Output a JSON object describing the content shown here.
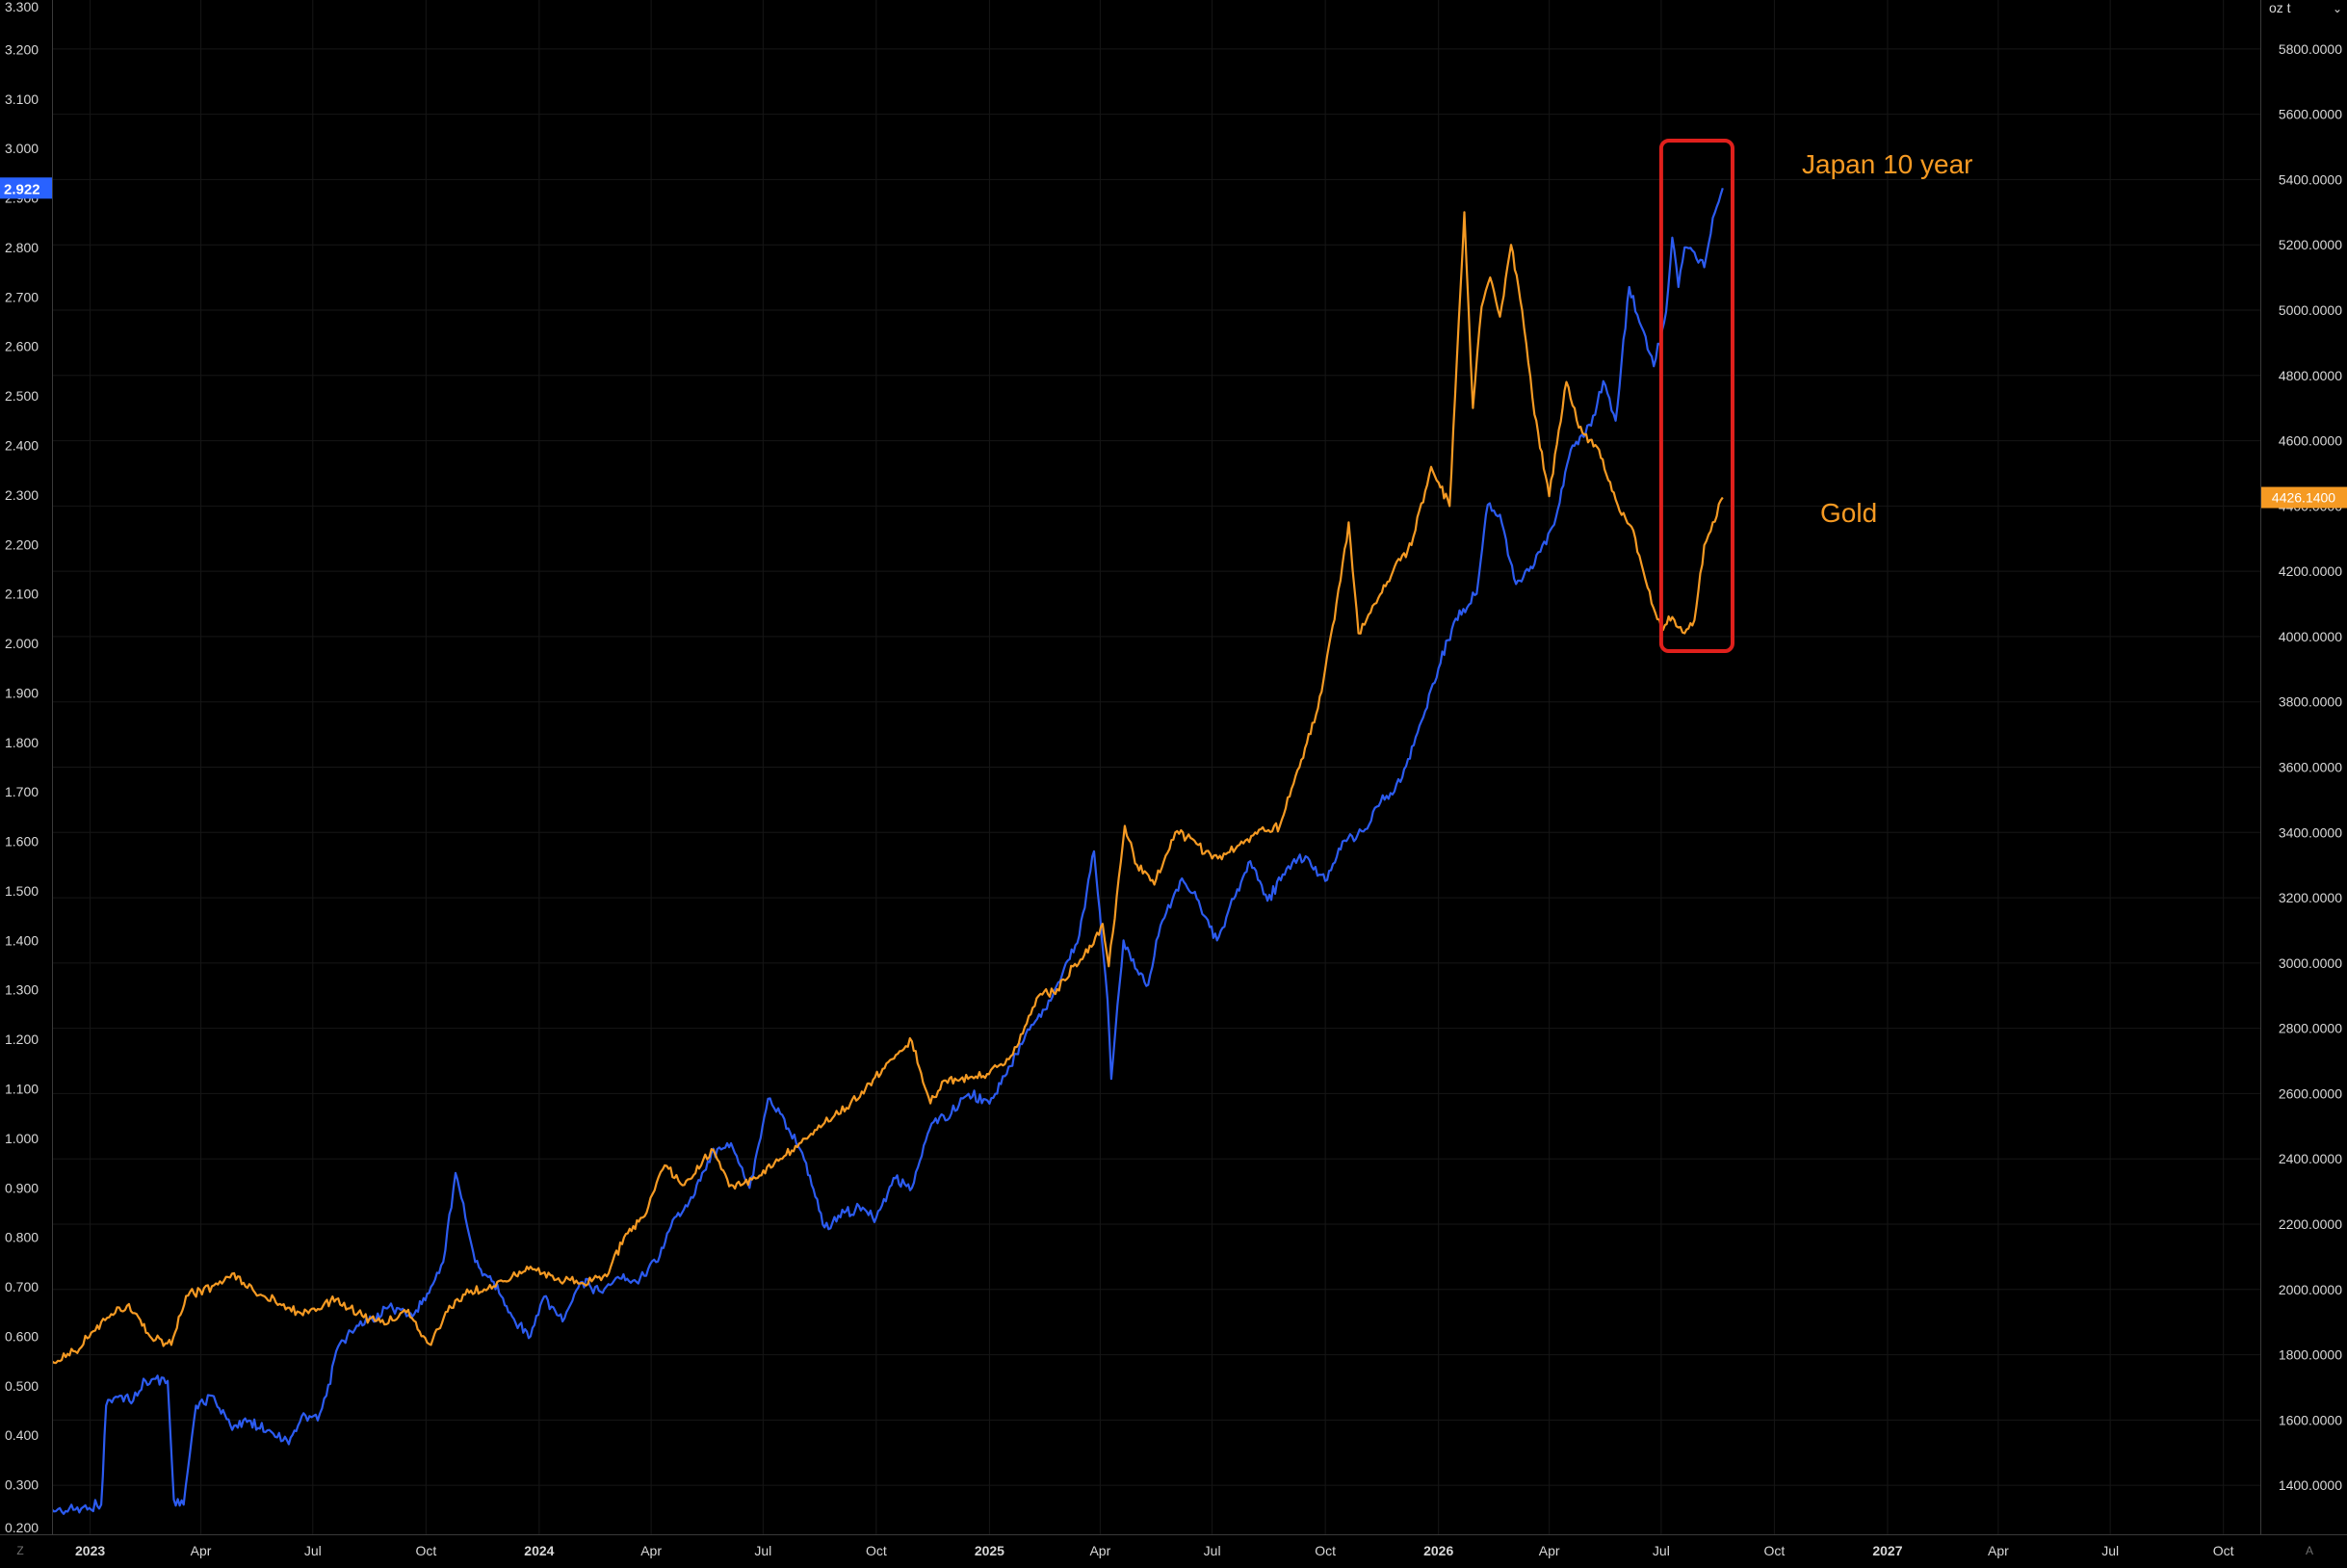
{
  "chart_data": {
    "type": "line",
    "x_range": [
      "2022-12-01",
      "2027-10-31"
    ],
    "x_tick_labels": [
      "2023",
      "Apr",
      "Jul",
      "Oct",
      "2024",
      "Apr",
      "Jul",
      "Oct",
      "2025",
      "Apr",
      "Jul",
      "Oct",
      "2026",
      "Apr",
      "Jul",
      "Oct",
      "2027",
      "Apr",
      "Jul",
      "Oct"
    ],
    "x_tick_dates": [
      "2023-01-01",
      "2023-04-01",
      "2023-07-01",
      "2023-10-01",
      "2024-01-01",
      "2024-04-01",
      "2024-07-01",
      "2024-10-01",
      "2025-01-01",
      "2025-04-01",
      "2025-07-01",
      "2025-10-01",
      "2026-01-01",
      "2026-04-01",
      "2026-07-01",
      "2026-10-01",
      "2027-01-01",
      "2027-04-01",
      "2027-07-01",
      "2027-10-01"
    ],
    "left_axis": {
      "ylim": [
        0.2,
        3.3
      ],
      "tick_labels": [
        "0.200",
        "0.300",
        "0.400",
        "0.500",
        "0.600",
        "0.700",
        "0.800",
        "0.900",
        "1.000",
        "1.100",
        "1.200",
        "1.300",
        "1.400",
        "1.500",
        "1.600",
        "1.700",
        "1.800",
        "1.900",
        "2.000",
        "2.100",
        "2.200",
        "2.300",
        "2.400",
        "2.500",
        "2.600",
        "2.700",
        "2.800",
        "2.900",
        "3.000",
        "3.100",
        "3.200",
        "3.300"
      ],
      "last_value_label": "2.922"
    },
    "right_axis": {
      "ylim": [
        1250,
        5950
      ],
      "unit_label": "oz t",
      "tick_labels": [
        "1400.0000",
        "1600.0000",
        "1800.0000",
        "2000.0000",
        "2200.0000",
        "2400.0000",
        "2600.0000",
        "2800.0000",
        "3000.0000",
        "3200.0000",
        "3400.0000",
        "3600.0000",
        "3800.0000",
        "4000.0000",
        "4200.0000",
        "4400.0000",
        "4600.0000",
        "4800.0000",
        "5000.0000",
        "5200.0000",
        "5400.0000",
        "5600.0000",
        "5800.0000"
      ],
      "last_value_label": "4426.1400"
    },
    "series": [
      {
        "name": "Japan 10 year",
        "axis": "left",
        "color": "#2c5bf0",
        "x": [
          "2022-12-01",
          "2022-12-20",
          "2023-01-10",
          "2023-01-14",
          "2023-01-25",
          "2023-02-05",
          "2023-02-15",
          "2023-03-05",
          "2023-03-10",
          "2023-03-18",
          "2023-03-28",
          "2023-04-10",
          "2023-04-25",
          "2023-05-10",
          "2023-05-25",
          "2023-06-10",
          "2023-06-25",
          "2023-07-05",
          "2023-07-12",
          "2023-07-20",
          "2023-08-01",
          "2023-08-15",
          "2023-09-01",
          "2023-09-20",
          "2023-10-05",
          "2023-10-15",
          "2023-10-25",
          "2023-11-10",
          "2023-11-25",
          "2023-12-10",
          "2023-12-25",
          "2024-01-05",
          "2024-01-20",
          "2024-02-05",
          "2024-02-20",
          "2024-03-05",
          "2024-03-20",
          "2024-04-05",
          "2024-04-20",
          "2024-05-05",
          "2024-05-20",
          "2024-06-05",
          "2024-06-20",
          "2024-07-05",
          "2024-07-15",
          "2024-07-28",
          "2024-08-05",
          "2024-08-20",
          "2024-09-05",
          "2024-09-20",
          "2024-10-01",
          "2024-10-15",
          "2024-10-30",
          "2024-11-15",
          "2024-12-01",
          "2024-12-15",
          "2025-01-01",
          "2025-01-15",
          "2025-02-01",
          "2025-02-15",
          "2025-03-01",
          "2025-03-15",
          "2025-03-27",
          "2025-04-07",
          "2025-04-10",
          "2025-04-20",
          "2025-05-01",
          "2025-05-10",
          "2025-05-20",
          "2025-06-05",
          "2025-06-20",
          "2025-07-05",
          "2025-07-20",
          "2025-08-01",
          "2025-08-15",
          "2025-09-01",
          "2025-09-15",
          "2025-10-01",
          "2025-10-15",
          "2025-11-01",
          "2025-11-15",
          "2025-12-01",
          "2025-12-15",
          "2026-01-01",
          "2026-01-15",
          "2026-02-01",
          "2026-02-10",
          "2026-02-20",
          "2026-03-05",
          "2026-03-20",
          "2026-04-05",
          "2026-04-20",
          "2026-05-05",
          "2026-05-15",
          "2026-05-25",
          "2026-06-05",
          "2026-06-15",
          "2026-06-25",
          "2026-07-05",
          "2026-07-10",
          "2026-07-15",
          "2026-07-20",
          "2026-07-28",
          "2026-08-05",
          "2026-08-12",
          "2026-08-20"
        ],
        "values": [
          0.25,
          0.25,
          0.26,
          0.46,
          0.48,
          0.47,
          0.51,
          0.51,
          0.27,
          0.26,
          0.46,
          0.48,
          0.42,
          0.43,
          0.41,
          0.39,
          0.44,
          0.43,
          0.48,
          0.57,
          0.61,
          0.63,
          0.66,
          0.64,
          0.7,
          0.75,
          0.93,
          0.75,
          0.71,
          0.64,
          0.6,
          0.68,
          0.63,
          0.71,
          0.69,
          0.72,
          0.71,
          0.75,
          0.84,
          0.88,
          0.97,
          0.99,
          0.9,
          1.08,
          1.05,
          0.99,
          0.95,
          0.82,
          0.85,
          0.86,
          0.84,
          0.92,
          0.9,
          1.03,
          1.05,
          1.09,
          1.07,
          1.13,
          1.22,
          1.26,
          1.33,
          1.41,
          1.58,
          1.28,
          1.12,
          1.4,
          1.34,
          1.31,
          1.43,
          1.52,
          1.48,
          1.4,
          1.49,
          1.56,
          1.48,
          1.55,
          1.57,
          1.52,
          1.6,
          1.62,
          1.68,
          1.72,
          1.82,
          1.95,
          2.05,
          2.1,
          2.28,
          2.26,
          2.12,
          2.16,
          2.24,
          2.4,
          2.44,
          2.53,
          2.45,
          2.72,
          2.64,
          2.56,
          2.67,
          2.82,
          2.72,
          2.8,
          2.79,
          2.76,
          2.86,
          2.92
        ]
      },
      {
        "name": "Gold",
        "axis": "right",
        "color": "#f59a23",
        "x": [
          "2022-12-01",
          "2022-12-20",
          "2023-01-10",
          "2023-01-31",
          "2023-02-20",
          "2023-03-08",
          "2023-03-20",
          "2023-04-10",
          "2023-04-28",
          "2023-05-15",
          "2023-06-01",
          "2023-06-20",
          "2023-07-05",
          "2023-07-20",
          "2023-08-10",
          "2023-08-25",
          "2023-09-15",
          "2023-10-05",
          "2023-10-20",
          "2023-11-05",
          "2023-11-25",
          "2023-12-10",
          "2023-12-25",
          "2024-01-15",
          "2024-02-05",
          "2024-02-25",
          "2024-03-10",
          "2024-03-25",
          "2024-04-12",
          "2024-04-28",
          "2024-05-10",
          "2024-05-20",
          "2024-06-05",
          "2024-06-25",
          "2024-07-15",
          "2024-08-01",
          "2024-08-20",
          "2024-09-10",
          "2024-09-30",
          "2024-10-20",
          "2024-10-30",
          "2024-11-14",
          "2024-11-25",
          "2024-12-10",
          "2024-12-30",
          "2025-01-20",
          "2025-02-10",
          "2025-02-25",
          "2025-03-10",
          "2025-03-25",
          "2025-04-03",
          "2025-04-08",
          "2025-04-21",
          "2025-05-01",
          "2025-05-15",
          "2025-06-01",
          "2025-06-15",
          "2025-07-01",
          "2025-07-20",
          "2025-08-05",
          "2025-08-25",
          "2025-09-10",
          "2025-09-25",
          "2025-10-10",
          "2025-10-20",
          "2025-10-28",
          "2025-11-10",
          "2025-11-25",
          "2025-12-10",
          "2025-12-26",
          "2026-01-10",
          "2026-01-22",
          "2026-01-29",
          "2026-02-05",
          "2026-02-12",
          "2026-02-20",
          "2026-03-01",
          "2026-03-10",
          "2026-03-20",
          "2026-04-01",
          "2026-04-15",
          "2026-04-25",
          "2026-05-10",
          "2026-05-25",
          "2026-06-10",
          "2026-06-20",
          "2026-07-01",
          "2026-07-10",
          "2026-07-20",
          "2026-07-28",
          "2026-08-05",
          "2026-08-12",
          "2026-08-20"
        ],
        "values": [
          1780,
          1810,
          1900,
          1950,
          1850,
          1830,
          1980,
          2010,
          2050,
          1990,
          1960,
          1930,
          1940,
          1970,
          1920,
          1900,
          1930,
          1830,
          1950,
          1990,
          2010,
          2040,
          2070,
          2030,
          2020,
          2040,
          2160,
          2220,
          2380,
          2320,
          2370,
          2430,
          2320,
          2340,
          2400,
          2450,
          2510,
          2570,
          2650,
          2730,
          2760,
          2570,
          2640,
          2650,
          2660,
          2720,
          2900,
          2920,
          2990,
          3050,
          3120,
          2990,
          3420,
          3300,
          3240,
          3400,
          3380,
          3320,
          3350,
          3400,
          3420,
          3600,
          3780,
          4100,
          4350,
          4010,
          4100,
          4200,
          4280,
          4520,
          4400,
          5300,
          4700,
          5010,
          5100,
          4980,
          5200,
          5000,
          4680,
          4430,
          4780,
          4640,
          4580,
          4420,
          4300,
          4150,
          4030,
          4060,
          4010,
          4050,
          4280,
          4350,
          4426
        ]
      }
    ],
    "annotations": [
      {
        "text": "Japan 10 year",
        "color": "#f59a23"
      },
      {
        "text": "Gold",
        "color": "#f59a23"
      }
    ],
    "highlight_box": {
      "x_range": [
        "2026-07-01",
        "2026-08-28"
      ],
      "color": "#e0201c"
    },
    "bottom_left_corner_label": "Z",
    "bottom_right_corner_label": "A",
    "grid": true,
    "background_color": "#000000",
    "grid_color": "#161616",
    "text_color": "#d8d8d8"
  }
}
